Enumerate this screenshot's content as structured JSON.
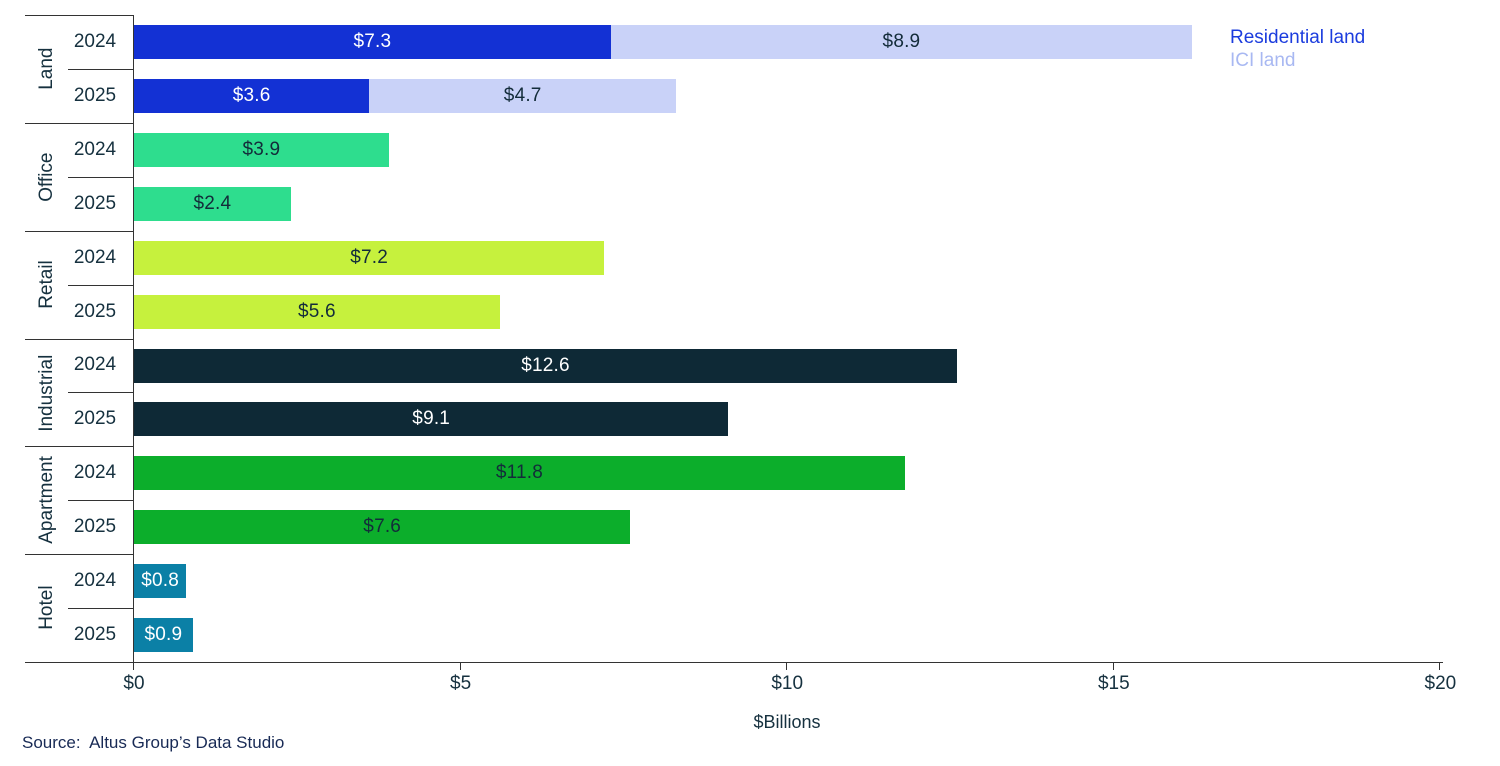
{
  "chart_data": {
    "type": "bar",
    "orientation": "horizontal",
    "title": "",
    "xlabel": "$Billions",
    "xlim": [
      0,
      20
    ],
    "grid": false,
    "xticks": [
      {
        "value": 0,
        "label": "$0"
      },
      {
        "value": 5,
        "label": "$5"
      },
      {
        "value": 10,
        "label": "$10"
      },
      {
        "value": 15,
        "label": "$15"
      },
      {
        "value": 20,
        "label": "$20"
      }
    ],
    "legend": {
      "position": "top-right",
      "entries": [
        {
          "label": "Residential land",
          "text_color": "#1b3cde"
        },
        {
          "label": "ICI land",
          "text_color": "#a8b8f2"
        }
      ]
    },
    "groups": [
      {
        "category": "Land",
        "rows": [
          {
            "year": "2024",
            "segments": [
              {
                "series": "Residential land",
                "value": 7.3,
                "label": "$7.3",
                "color": "#1331d4",
                "label_color": "#ffffff"
              },
              {
                "series": "ICI land",
                "value": 8.9,
                "label": "$8.9",
                "color": "#c9d2f8",
                "label_color": "#132c3a"
              }
            ]
          },
          {
            "year": "2025",
            "segments": [
              {
                "series": "Residential land",
                "value": 3.6,
                "label": "$3.6",
                "color": "#1331d4",
                "label_color": "#ffffff"
              },
              {
                "series": "ICI land",
                "value": 4.7,
                "label": "$4.7",
                "color": "#c9d2f8",
                "label_color": "#132c3a"
              }
            ]
          }
        ]
      },
      {
        "category": "Office",
        "rows": [
          {
            "year": "2024",
            "segments": [
              {
                "series": "Office",
                "value": 3.9,
                "label": "$3.9",
                "color": "#2edd8e",
                "label_color": "#132c3a"
              }
            ]
          },
          {
            "year": "2025",
            "segments": [
              {
                "series": "Office",
                "value": 2.4,
                "label": "$2.4",
                "color": "#2edd8e",
                "label_color": "#132c3a"
              }
            ]
          }
        ]
      },
      {
        "category": "Retail",
        "rows": [
          {
            "year": "2024",
            "segments": [
              {
                "series": "Retail",
                "value": 7.2,
                "label": "$7.2",
                "color": "#c6f13d",
                "label_color": "#132c3a"
              }
            ]
          },
          {
            "year": "2025",
            "segments": [
              {
                "series": "Retail",
                "value": 5.6,
                "label": "$5.6",
                "color": "#c6f13d",
                "label_color": "#132c3a"
              }
            ]
          }
        ]
      },
      {
        "category": "Industrial",
        "rows": [
          {
            "year": "2024",
            "segments": [
              {
                "series": "Industrial",
                "value": 12.6,
                "label": "$12.6",
                "color": "#0e2936",
                "label_color": "#ffffff"
              }
            ]
          },
          {
            "year": "2025",
            "segments": [
              {
                "series": "Industrial",
                "value": 9.1,
                "label": "$9.1",
                "color": "#0e2936",
                "label_color": "#ffffff"
              }
            ]
          }
        ]
      },
      {
        "category": "Apartment",
        "rows": [
          {
            "year": "2024",
            "segments": [
              {
                "series": "Apartment",
                "value": 11.8,
                "label": "$11.8",
                "color": "#0cae2b",
                "label_color": "#132c3a"
              }
            ]
          },
          {
            "year": "2025",
            "segments": [
              {
                "series": "Apartment",
                "value": 7.6,
                "label": "$7.6",
                "color": "#0cae2b",
                "label_color": "#132c3a"
              }
            ]
          }
        ]
      },
      {
        "category": "Hotel",
        "rows": [
          {
            "year": "2024",
            "segments": [
              {
                "series": "Hotel",
                "value": 0.8,
                "label": "$0.8",
                "color": "#0b80a6",
                "label_color": "#ffffff"
              }
            ]
          },
          {
            "year": "2025",
            "segments": [
              {
                "series": "Hotel",
                "value": 0.9,
                "label": "$0.9",
                "color": "#0b80a6",
                "label_color": "#ffffff"
              }
            ]
          }
        ]
      }
    ],
    "source": "Source:  Altus Group’s Data Studio"
  }
}
